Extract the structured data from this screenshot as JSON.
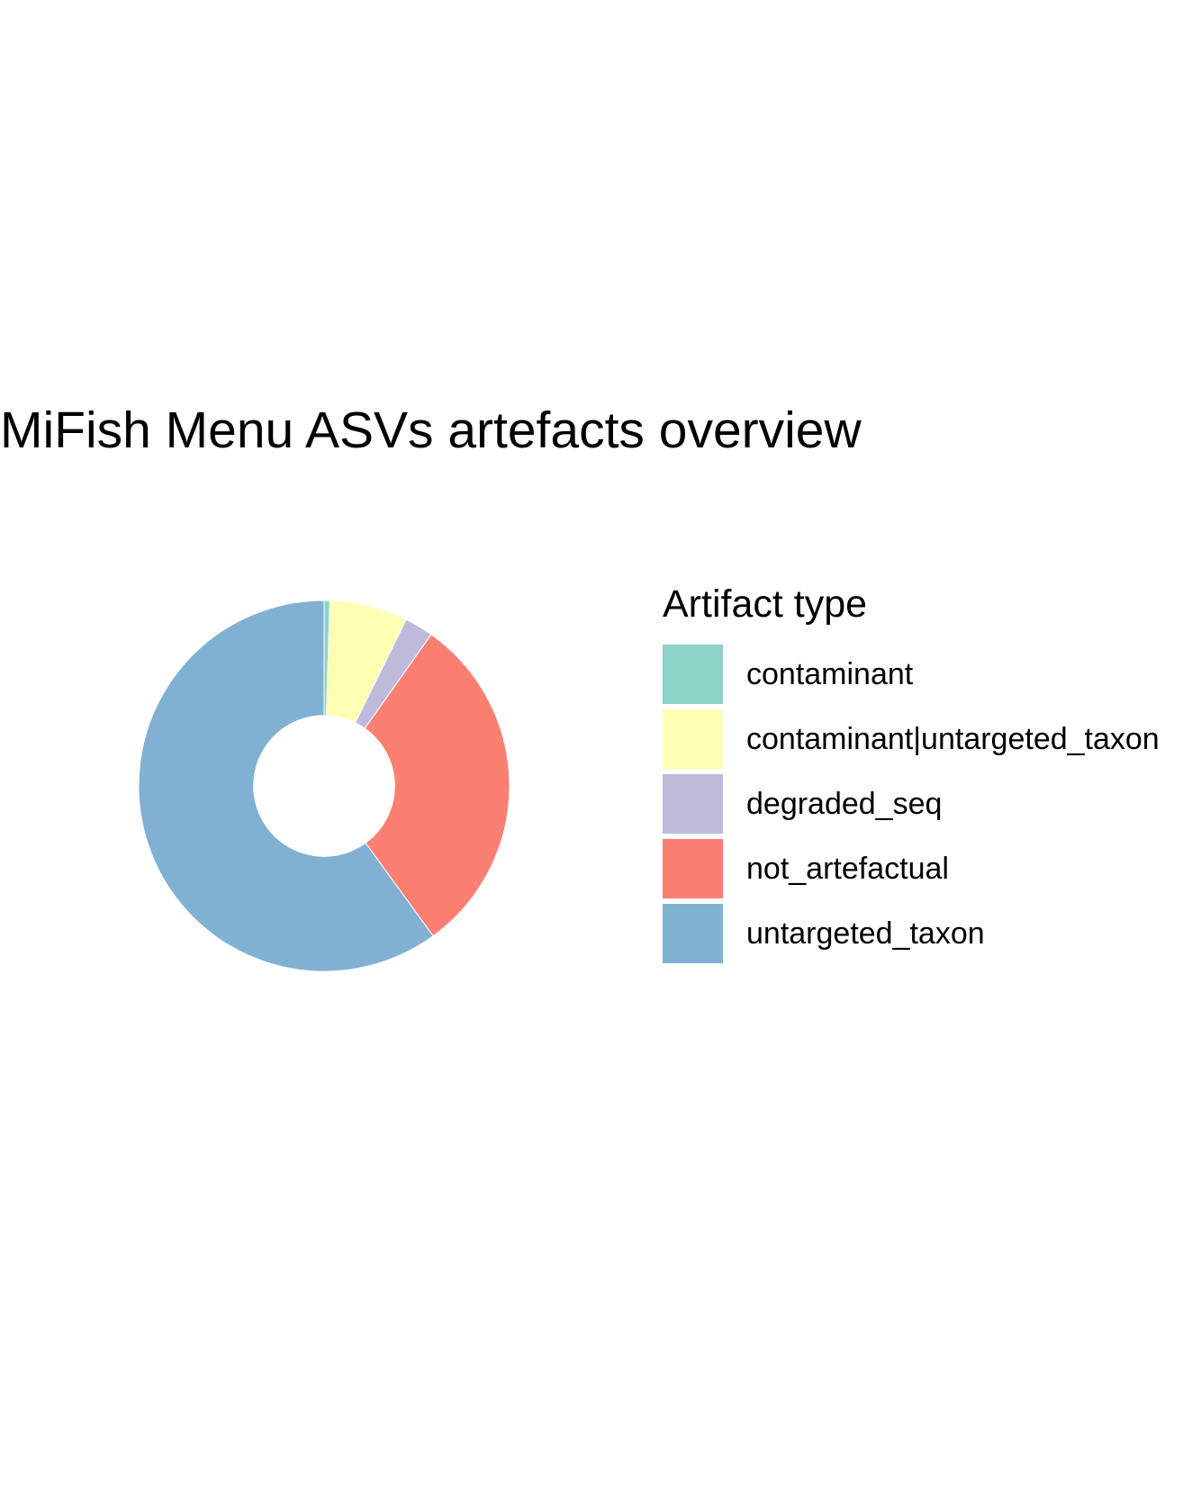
{
  "chart_data": {
    "type": "pie",
    "title": "MiFish Menu ASVs artefacts overview",
    "legend_title": "Artifact type",
    "legend_position": "right",
    "inner_radius_ratio": 0.38,
    "categories": [
      "contaminant",
      "contaminant|untargeted_taxon",
      "degraded_seq",
      "not_artefactual",
      "untargeted_taxon"
    ],
    "values": [
      0.5,
      6.8,
      2.5,
      30.2,
      60.0
    ],
    "colors": [
      "#8DD3C7",
      "#FFFFB3",
      "#BEBADA",
      "#FB8072",
      "#80B1D3"
    ]
  }
}
